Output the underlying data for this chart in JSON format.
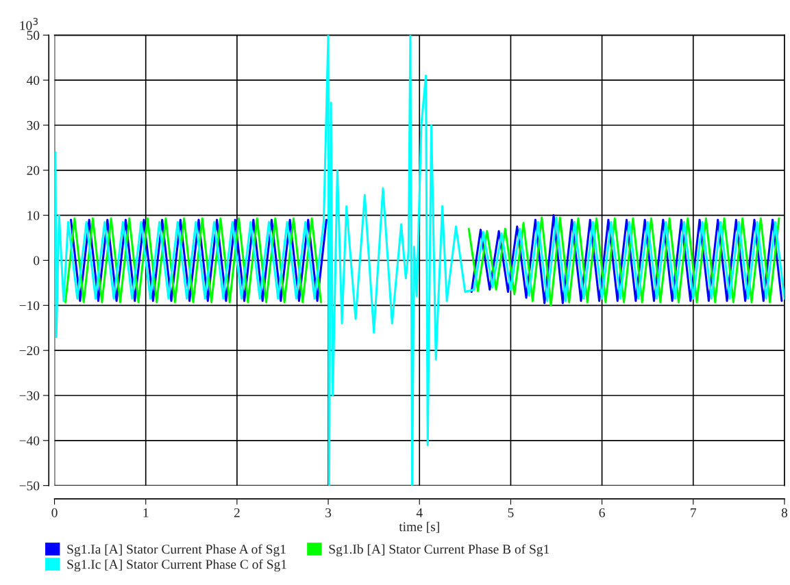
{
  "chart_data": {
    "type": "line",
    "xlabel": "time [s]",
    "ylabel": "10$^{3}$",
    "xlim": [
      0,
      8
    ],
    "xticks": [
      0,
      1,
      2,
      3,
      4,
      5,
      6,
      7,
      8
    ],
    "ylim": [
      -50,
      50
    ],
    "yticks": [
      {
        "value": -50,
        "label": "−50"
      },
      {
        "value": -40,
        "label": "−40"
      },
      {
        "value": -30,
        "label": "−30"
      },
      {
        "value": -20,
        "label": "−20"
      },
      {
        "value": -10,
        "label": "−10"
      },
      0,
      10,
      20,
      30,
      40,
      50
    ],
    "grid": true,
    "legend": "bottom",
    "marker": "none",
    "line_style": "solid",
    "x": [
      0,
      0.01,
      0.02,
      0.05,
      0.1,
      0.15,
      0.25,
      0.35,
      0.45,
      0.55,
      0.65,
      0.75,
      0.85,
      0.95,
      1.05,
      1.15,
      1.25,
      1.35,
      1.45,
      1.55,
      1.65,
      1.75,
      1.85,
      1.95,
      2.05,
      2.15,
      2.25,
      2.35,
      2.45,
      2.55,
      2.65,
      2.75,
      2.85,
      2.95,
      3.0,
      3.01,
      3.03,
      3.05,
      3.1,
      3.15,
      3.2,
      3.3,
      3.4,
      3.5,
      3.6,
      3.7,
      3.8,
      3.85,
      3.88,
      3.9,
      3.92,
      3.94,
      3.97,
      4.02,
      4.07,
      4.09,
      4.13,
      4.18,
      4.25,
      4.3,
      4.4,
      4.5,
      4.6,
      4.7,
      4.8,
      4.9,
      5.0,
      5.1,
      5.2,
      5.3,
      5.4,
      5.5,
      5.6,
      5.7,
      5.8,
      5.9,
      6.0,
      6.1,
      6.2,
      6.3,
      6.4,
      6.5,
      6.6,
      6.7,
      6.8,
      6.9,
      7.0,
      7.1,
      7.2,
      7.3,
      7.4,
      7.5,
      7.6,
      7.7,
      7.8,
      7.9,
      8.0
    ],
    "series": [
      {
        "name": "Sg1.Ia [A] Stator Current Phase A of Sg1",
        "color": "#0000ff",
        "x": [
          0.18,
          0.28,
          0.38,
          0.48,
          0.58,
          0.68,
          0.78,
          0.88,
          0.98,
          1.08,
          1.18,
          1.28,
          1.38,
          1.48,
          1.58,
          1.68,
          1.78,
          1.88,
          1.98,
          2.08,
          2.18,
          2.28,
          2.38,
          2.48,
          2.58,
          2.68,
          2.78,
          2.88,
          2.98,
          3.0,
          4.57,
          4.67,
          4.77,
          4.87,
          4.97,
          5.07,
          5.17,
          5.27,
          5.37,
          5.47,
          5.57,
          5.67,
          5.77,
          5.87,
          5.97,
          6.07,
          6.17,
          6.27,
          6.37,
          6.47,
          6.57,
          6.67,
          6.77,
          6.87,
          6.97,
          7.07,
          7.17,
          7.27,
          7.37,
          7.47,
          7.57,
          7.67,
          7.77,
          7.87,
          7.97
        ],
        "values": [
          9,
          -9,
          9,
          -9,
          9,
          -9,
          9,
          -9,
          9,
          -9,
          9,
          -9,
          9,
          -9,
          9,
          -9,
          9,
          -9,
          9,
          -9,
          9,
          -9,
          9,
          -9,
          9,
          -9,
          9,
          -9,
          9,
          null,
          -7,
          6.8,
          -6.5,
          6.5,
          -7,
          7.5,
          -8.3,
          9,
          -9.5,
          10,
          -9.5,
          9,
          -9,
          9,
          -9,
          9,
          -9,
          9,
          -9,
          9,
          -9,
          9,
          -9,
          9,
          -9,
          9,
          -9,
          9,
          -9,
          9,
          -9,
          9,
          -9,
          9,
          -9
        ]
      },
      {
        "name": "Sg1.Ib [A] Stator Current Phase B of Sg1",
        "color": "#00ff00",
        "x": [
          0.12,
          0.22,
          0.32,
          0.42,
          0.52,
          0.62,
          0.72,
          0.82,
          0.92,
          1.02,
          1.12,
          1.22,
          1.32,
          1.42,
          1.52,
          1.62,
          1.72,
          1.82,
          1.92,
          2.02,
          2.12,
          2.22,
          2.32,
          2.42,
          2.52,
          2.62,
          2.72,
          2.82,
          2.92,
          3.0,
          4.54,
          4.64,
          4.74,
          4.84,
          4.94,
          5.04,
          5.14,
          5.24,
          5.34,
          5.44,
          5.54,
          5.64,
          5.74,
          5.84,
          5.94,
          6.04,
          6.14,
          6.24,
          6.34,
          6.44,
          6.54,
          6.64,
          6.74,
          6.84,
          6.94,
          7.04,
          7.14,
          7.24,
          7.34,
          7.44,
          7.54,
          7.64,
          7.74,
          7.84,
          7.94
        ],
        "values": [
          -9.3,
          9.3,
          -9.3,
          9.3,
          -9.3,
          9.3,
          -9.3,
          9.3,
          -9.3,
          9.3,
          -9.3,
          9.3,
          -9.3,
          9.3,
          -9.3,
          9.3,
          -9.3,
          9.3,
          -9.3,
          9.3,
          -9.3,
          9.3,
          -9.3,
          9.3,
          -9.3,
          9.3,
          -9.3,
          9.3,
          -9.3,
          null,
          7,
          -6.8,
          6.5,
          -6.5,
          7,
          -7.5,
          8.3,
          -9,
          9.5,
          -10,
          9.5,
          -9.3,
          9.3,
          -9.3,
          9.3,
          -9.3,
          9.3,
          -9.3,
          9.3,
          -9.3,
          9.3,
          -9.3,
          9.3,
          -9.3,
          9.3,
          -9.3,
          9.3,
          -9.3,
          9.3,
          -9.3,
          9.3,
          -9.3,
          9.3,
          -9.3,
          9.3
        ]
      },
      {
        "name": "Sg1.Ic [A] Stator Current Phase C of Sg1",
        "color": "#00ffff",
        "values": [
          0,
          24,
          -17,
          10,
          -9,
          8.5,
          -8.5,
          8.5,
          -8.5,
          8.5,
          -8.5,
          8.5,
          -8.5,
          8.5,
          -8.5,
          8.5,
          -8.5,
          8.5,
          -8.5,
          8.5,
          -8.5,
          8.5,
          -8.5,
          8.5,
          -8.5,
          8.5,
          -8.5,
          8.5,
          -8.5,
          8.5,
          -8.5,
          8.5,
          -8.5,
          8.5,
          50,
          -50,
          35,
          -30,
          20,
          -14,
          12,
          -13,
          14.5,
          -16,
          16,
          -14,
          8,
          -4,
          2,
          50,
          -50,
          3,
          -8,
          30,
          41,
          -41,
          30,
          -22,
          12,
          -9,
          7.5,
          -7,
          -6.5,
          6.3,
          -6,
          6,
          -6.5,
          7,
          -7.8,
          8.5,
          -9,
          9.5,
          -9,
          8.5,
          -8.5,
          8.5,
          -8.5,
          8.5,
          -8.5,
          8.5,
          -8.5,
          8.5,
          -8.5,
          8.5,
          -8.5,
          8.5,
          -8.5,
          8.5,
          -8.5,
          8.5,
          -8.5,
          8.5,
          -8.5,
          8.5,
          -8.5,
          8.5,
          -8.5
        ]
      }
    ]
  }
}
